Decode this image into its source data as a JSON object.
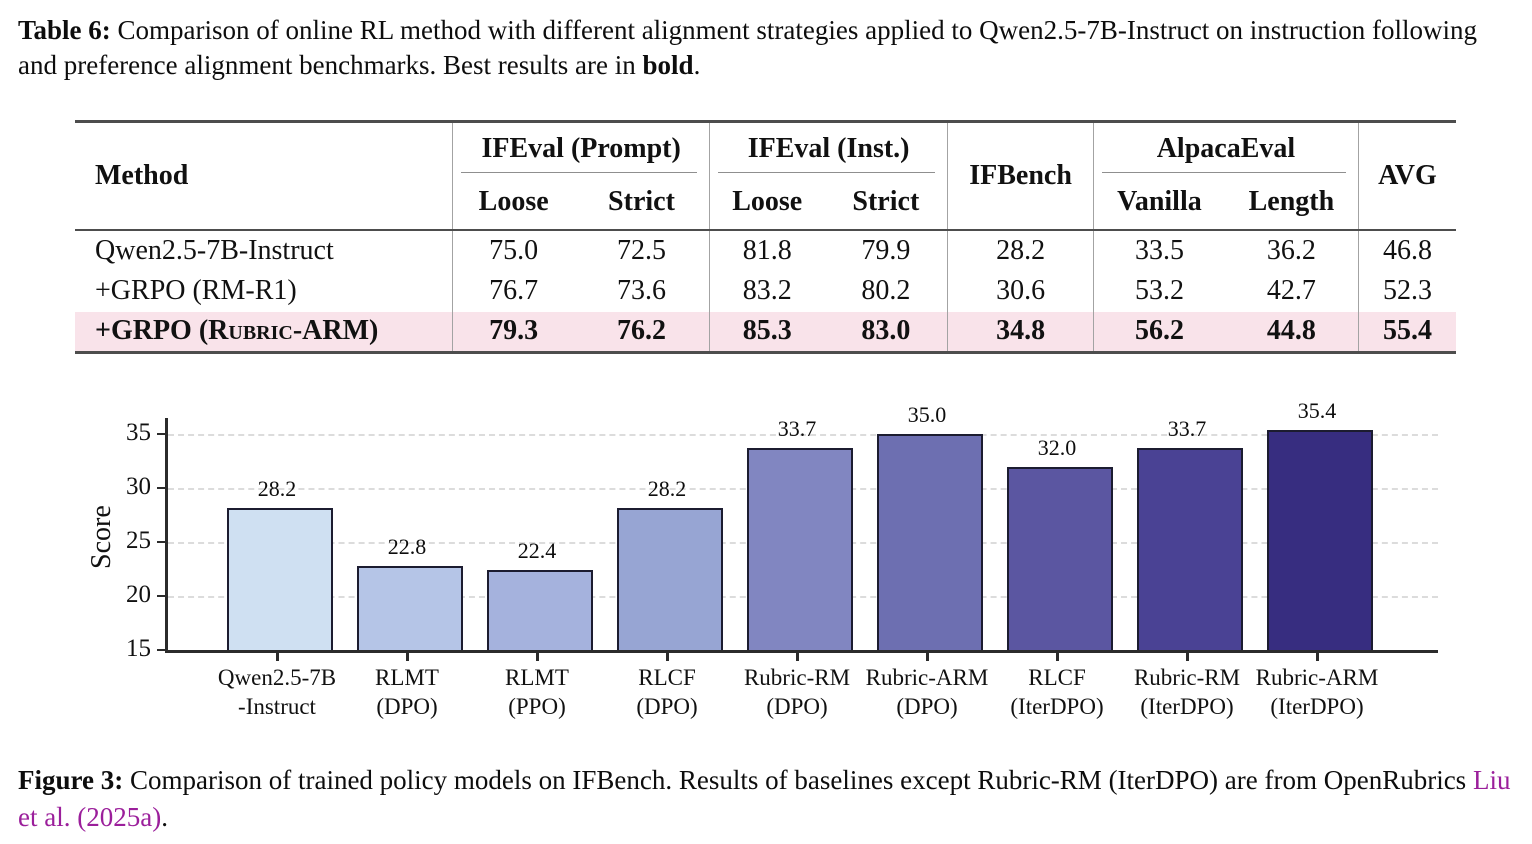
{
  "table_caption": {
    "prefix": "Table 6:",
    "body": " Comparison of online RL method with different alignment strategies applied to Qwen2.5-7B-Instruct on instruction following and preference alignment benchmarks. Best results are in ",
    "bold_word": "bold",
    "suffix": "."
  },
  "table": {
    "method_header": "Method",
    "groups": [
      {
        "label": "IFEval (Prompt)",
        "children": [
          "Loose",
          "Strict"
        ]
      },
      {
        "label": "IFEval (Inst.)",
        "children": [
          "Loose",
          "Strict"
        ]
      },
      {
        "label": "IFBench",
        "children": []
      },
      {
        "label": "AlpacaEval",
        "children": [
          "Vanilla",
          "Length"
        ]
      },
      {
        "label": "AVG",
        "children": []
      }
    ],
    "rows": [
      {
        "method": "Qwen2.5-7B-Instruct",
        "smallcaps": false,
        "bold": false,
        "highlight": false,
        "values": [
          "75.0",
          "72.5",
          "81.8",
          "79.9",
          "28.2",
          "33.5",
          "36.2",
          "46.8"
        ]
      },
      {
        "method": "+GRPO (RM-R1)",
        "smallcaps": false,
        "bold": false,
        "highlight": false,
        "values": [
          "76.7",
          "73.6",
          "83.2",
          "80.2",
          "30.6",
          "53.2",
          "42.7",
          "52.3"
        ]
      },
      {
        "method": "+GRPO (Rubric-ARM)",
        "smallcaps": true,
        "bold": true,
        "highlight": true,
        "values": [
          "79.3",
          "76.2",
          "85.3",
          "83.0",
          "34.8",
          "56.2",
          "44.8",
          "55.4"
        ]
      }
    ],
    "highlight_color": "#f9e3ea"
  },
  "chart_data": {
    "type": "bar",
    "title": "",
    "xlabel": "",
    "ylabel": "Score",
    "ylim": [
      15,
      36.5
    ],
    "yticks": [
      15,
      20,
      25,
      30,
      35
    ],
    "grid": "horizontal-dashed",
    "legend": "none",
    "categories": [
      [
        "Qwen2.5-7B",
        "-Instruct"
      ],
      [
        "RLMT",
        "(DPO)"
      ],
      [
        "RLMT",
        "(PPO)"
      ],
      [
        "RLCF",
        "(DPO)"
      ],
      [
        "Rubric-RM",
        "(DPO)"
      ],
      [
        "Rubric-ARM",
        "(DPO)"
      ],
      [
        "RLCF",
        "(IterDPO)"
      ],
      [
        "Rubric-RM",
        "(IterDPO)"
      ],
      [
        "Rubric-ARM",
        "(IterDPO)"
      ]
    ],
    "values": [
      28.2,
      22.8,
      22.4,
      28.2,
      33.7,
      35.0,
      32.0,
      33.7,
      35.4
    ],
    "bar_colors": [
      "#cfe0f2",
      "#b5c5e7",
      "#a5b2dd",
      "#97a5d3",
      "#8186c1",
      "#6d6fb1",
      "#5b56a1",
      "#4a4294",
      "#372d80"
    ],
    "bar_border_color": "#1c1c30"
  },
  "figure_caption": {
    "prefix": "Figure 3:",
    "body": " Comparison of trained policy models on IFBench. Results of baselines except Rubric-RM (IterDPO) are from OpenRubrics ",
    "citation_authors": "Liu et al.",
    "citation_year": " (2025a)",
    "suffix": ".",
    "link_color": "#9b1f9b"
  }
}
